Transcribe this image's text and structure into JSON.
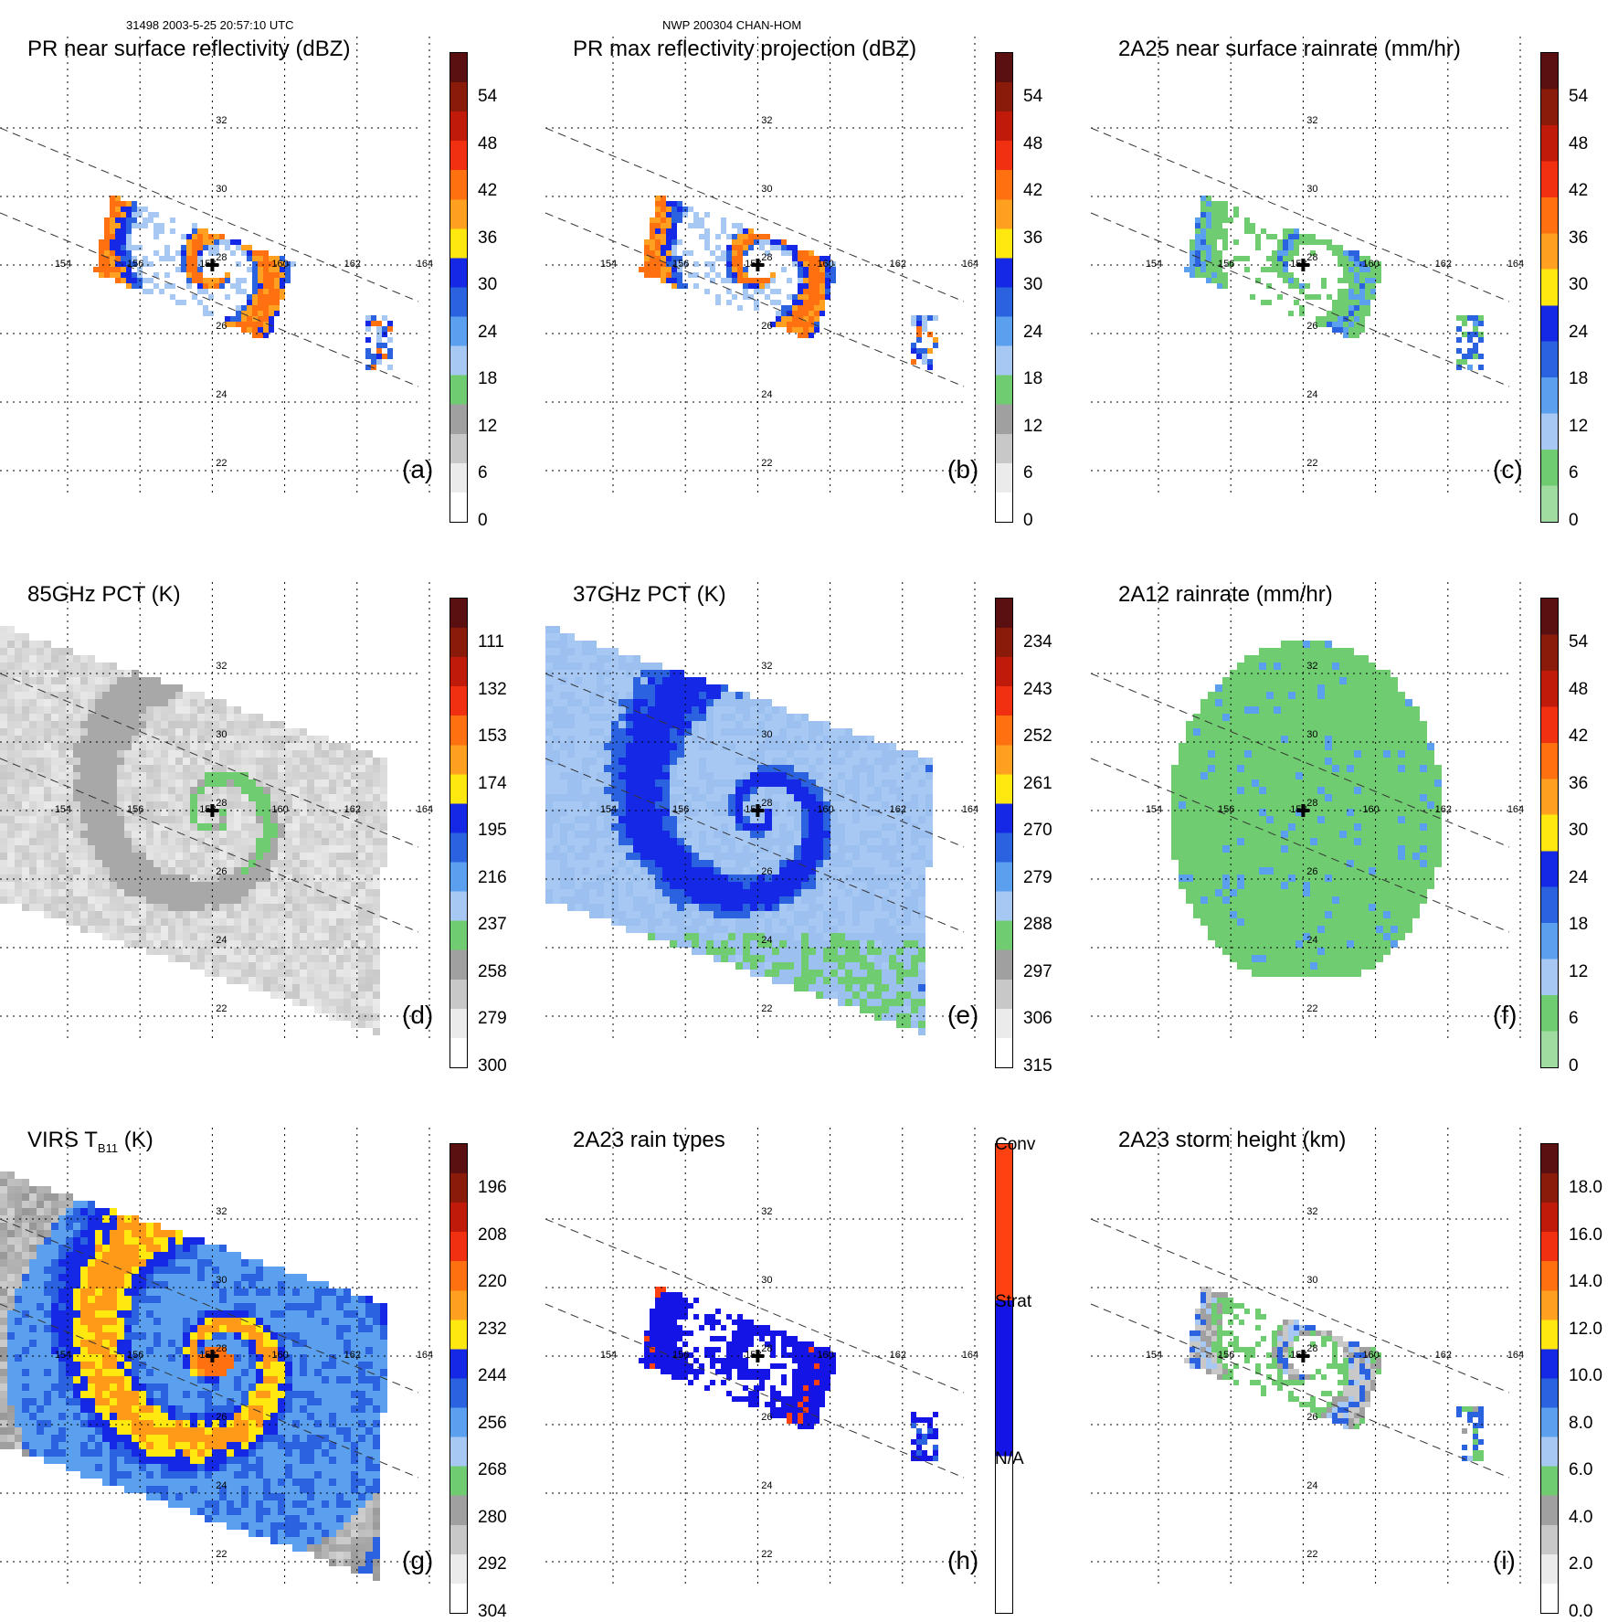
{
  "header": {
    "orbit_time": "31498 2003-5-25 20:57:10 UTC",
    "storm_id": "NWP 200304 CHAN-HOM"
  },
  "grid": {
    "lon_labels": [
      "154",
      "156",
      "158",
      "160",
      "162",
      "164"
    ],
    "lat_labels": [
      "22",
      "24",
      "26",
      "28",
      "30",
      "32"
    ]
  },
  "panels": [
    {
      "id": "a",
      "title": "PR near surface reflectivity (dBZ)",
      "label": "(a)",
      "kind": "swath_narrow",
      "scheme": "dbz",
      "colorbar": {
        "labels": [
          "54",
          "48",
          "42",
          "36",
          "30",
          "24",
          "18",
          "12",
          "6",
          "0"
        ],
        "colors": [
          "#5a1010",
          "#8a1a0a",
          "#c01a0a",
          "#f03010",
          "#ff7010",
          "#ffa020",
          "#ffe810",
          "#1428e6",
          "#2a62e0",
          "#5aa0ee",
          "#a8c8f4",
          "#70cc70",
          "#a0a0a0",
          "#c8c8c8",
          "#ebebeb",
          "#ffffff"
        ]
      }
    },
    {
      "id": "b",
      "title": "PR max reflectivity projection (dBZ)",
      "label": "(b)",
      "kind": "swath_narrow",
      "scheme": "dbz",
      "colorbar": {
        "labels": [
          "54",
          "48",
          "42",
          "36",
          "30",
          "24",
          "18",
          "12",
          "6",
          "0"
        ],
        "colors": [
          "#5a1010",
          "#8a1a0a",
          "#c01a0a",
          "#f03010",
          "#ff7010",
          "#ffa020",
          "#ffe810",
          "#1428e6",
          "#2a62e0",
          "#5aa0ee",
          "#a8c8f4",
          "#70cc70",
          "#a0a0a0",
          "#c8c8c8",
          "#ebebeb",
          "#ffffff"
        ]
      }
    },
    {
      "id": "c",
      "title": "2A25 near surface rainrate (mm/hr)",
      "label": "(c)",
      "kind": "swath_narrow",
      "scheme": "rain",
      "colorbar": {
        "labels": [
          "54",
          "48",
          "42",
          "36",
          "30",
          "24",
          "18",
          "12",
          "6",
          "0"
        ],
        "colors": [
          "#5a1010",
          "#8a1a0a",
          "#c01a0a",
          "#f03010",
          "#ff7010",
          "#ffa020",
          "#ffe810",
          "#1428e6",
          "#2a62e0",
          "#5aa0ee",
          "#a8c8f4",
          "#70cc70",
          "#a0dca0"
        ]
      }
    },
    {
      "id": "d",
      "title": "85GHz PCT (K)",
      "label": "(d)",
      "kind": "swath_wide",
      "scheme": "pct85",
      "colorbar": {
        "labels": [
          "111",
          "132",
          "153",
          "174",
          "195",
          "216",
          "237",
          "258",
          "279",
          "300"
        ],
        "colors": [
          "#5a1010",
          "#8a1a0a",
          "#c01a0a",
          "#f03010",
          "#ff7010",
          "#ffa020",
          "#ffe810",
          "#1428e6",
          "#2a62e0",
          "#5aa0ee",
          "#a8c8f4",
          "#70cc70",
          "#a0a0a0",
          "#c8c8c8",
          "#ebebeb",
          "#ffffff"
        ]
      }
    },
    {
      "id": "e",
      "title": "37GHz PCT (K)",
      "label": "(e)",
      "kind": "swath_wide",
      "scheme": "pct37",
      "colorbar": {
        "labels": [
          "234",
          "243",
          "252",
          "261",
          "270",
          "279",
          "288",
          "297",
          "306",
          "315"
        ],
        "colors": [
          "#5a1010",
          "#8a1a0a",
          "#c01a0a",
          "#f03010",
          "#ff7010",
          "#ffa020",
          "#ffe810",
          "#1428e6",
          "#2a62e0",
          "#5aa0ee",
          "#a8c8f4",
          "#70cc70",
          "#a0a0a0",
          "#c8c8c8",
          "#ebebeb",
          "#ffffff"
        ]
      }
    },
    {
      "id": "f",
      "title": "2A12 rainrate (mm/hr)",
      "label": "(f)",
      "kind": "swath_wide_blob",
      "scheme": "rain12",
      "colorbar": {
        "labels": [
          "54",
          "48",
          "42",
          "36",
          "30",
          "24",
          "18",
          "12",
          "6",
          "0"
        ],
        "colors": [
          "#5a1010",
          "#8a1a0a",
          "#c01a0a",
          "#f03010",
          "#ff7010",
          "#ffa020",
          "#ffe810",
          "#1428e6",
          "#2a62e0",
          "#5aa0ee",
          "#a8c8f4",
          "#70cc70",
          "#a0dca0"
        ]
      }
    },
    {
      "id": "g",
      "title": "VIRS T",
      "title_sub": "B11",
      "title_tail": " (K)",
      "label": "(g)",
      "kind": "virs",
      "scheme": "virs",
      "colorbar": {
        "labels": [
          "196",
          "208",
          "220",
          "232",
          "244",
          "256",
          "268",
          "280",
          "292",
          "304"
        ],
        "colors": [
          "#5a1010",
          "#8a1a0a",
          "#c01a0a",
          "#f03010",
          "#ff7010",
          "#ffa020",
          "#ffe810",
          "#1428e6",
          "#2a62e0",
          "#5aa0ee",
          "#a8c8f4",
          "#70cc70",
          "#a0a0a0",
          "#c8c8c8",
          "#ebebeb",
          "#ffffff"
        ]
      }
    },
    {
      "id": "h",
      "title": "2A23 rain types",
      "label": "(h)",
      "kind": "swath_narrow",
      "scheme": "raintype",
      "colorbar": {
        "labels": [
          "Conv",
          "Strat",
          "N/A"
        ],
        "colors": [
          "#ff4010",
          "#1414e6",
          "#ffffff"
        ]
      }
    },
    {
      "id": "i",
      "title": "2A23 storm height (km)",
      "label": "(i)",
      "kind": "swath_narrow",
      "scheme": "height",
      "colorbar": {
        "labels": [
          "18.0",
          "16.0",
          "14.0",
          "12.0",
          "10.0",
          "8.0",
          "6.0",
          "4.0",
          "2.0",
          "0.0"
        ],
        "colors": [
          "#5a1010",
          "#8a1a0a",
          "#c01a0a",
          "#f03010",
          "#ff7010",
          "#ffa020",
          "#ffe810",
          "#1428e6",
          "#2a62e0",
          "#5aa0ee",
          "#a8c8f4",
          "#70cc70",
          "#a0a0a0",
          "#c8c8c8",
          "#ebebeb",
          "#ffffff"
        ]
      }
    }
  ]
}
